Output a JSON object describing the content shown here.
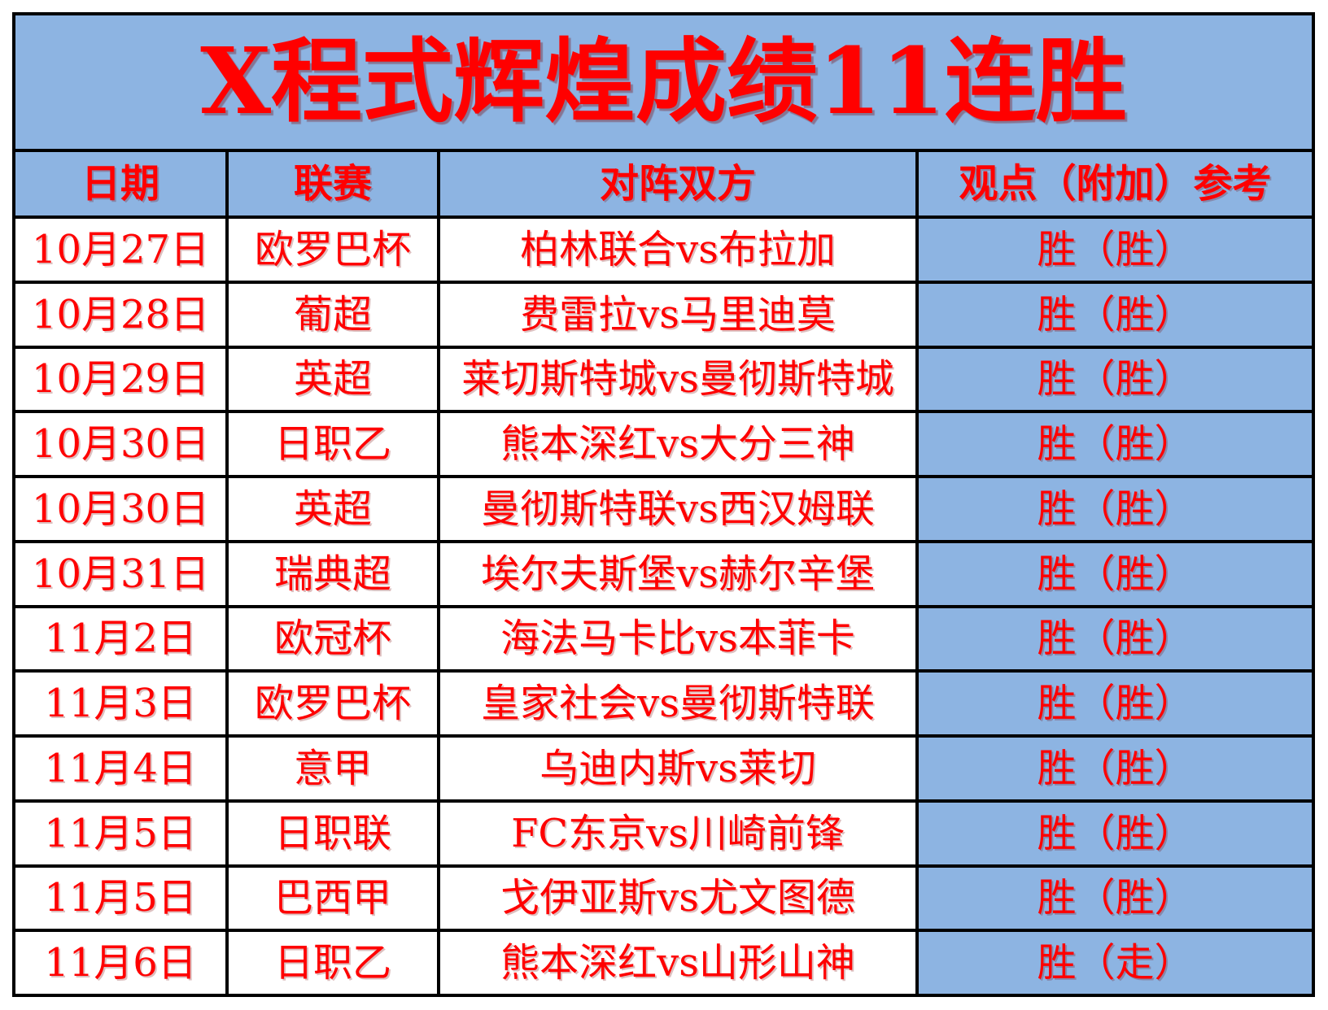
{
  "title": "X程式辉煌成绩11连胜",
  "columns": {
    "date": "日期",
    "league": "联赛",
    "matchup": "对阵双方",
    "opinion": "观点（附加）参考"
  },
  "rows": [
    {
      "date": "10月27日",
      "league": "欧罗巴杯",
      "matchup": "柏林联合vs布拉加",
      "opinion": "胜（胜）"
    },
    {
      "date": "10月28日",
      "league": "葡超",
      "matchup": "费雷拉vs马里迪莫",
      "opinion": "胜（胜）"
    },
    {
      "date": "10月29日",
      "league": "英超",
      "matchup": "莱切斯特城vs曼彻斯特城",
      "opinion": "胜（胜）"
    },
    {
      "date": "10月30日",
      "league": "日职乙",
      "matchup": "熊本深红vs大分三神",
      "opinion": "胜（胜）"
    },
    {
      "date": "10月30日",
      "league": "英超",
      "matchup": "曼彻斯特联vs西汉姆联",
      "opinion": "胜（胜）"
    },
    {
      "date": "10月31日",
      "league": "瑞典超",
      "matchup": "埃尔夫斯堡vs赫尔辛堡",
      "opinion": "胜（胜）"
    },
    {
      "date": "11月2日",
      "league": "欧冠杯",
      "matchup": "海法马卡比vs本菲卡",
      "opinion": "胜（胜）"
    },
    {
      "date": "11月3日",
      "league": "欧罗巴杯",
      "matchup": "皇家社会vs曼彻斯特联",
      "opinion": "胜（胜）"
    },
    {
      "date": "11月4日",
      "league": "意甲",
      "matchup": "乌迪内斯vs莱切",
      "opinion": "胜（胜）"
    },
    {
      "date": "11月5日",
      "league": "日职联",
      "matchup": "FC东京vs川崎前锋",
      "opinion": "胜（胜）"
    },
    {
      "date": "11月5日",
      "league": "巴西甲",
      "matchup": "戈伊亚斯vs尤文图德",
      "opinion": "胜（胜）"
    },
    {
      "date": "11月6日",
      "league": "日职乙",
      "matchup": "熊本深红vs山形山神",
      "opinion": "胜（走）"
    }
  ],
  "colors": {
    "table_blue": "#8DB4E2",
    "text_red": "#FF0000",
    "border_black": "#000000",
    "page_bg": "#FFFFFF"
  }
}
